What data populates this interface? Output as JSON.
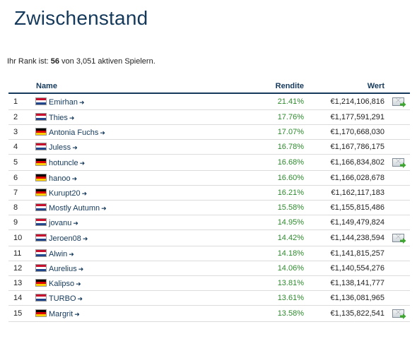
{
  "page": {
    "title": "Zwischenstand",
    "rank_prefix": "Ihr Rank ist: ",
    "rank_value": "56",
    "rank_suffix": " von 3,051 aktiven Spielern."
  },
  "table": {
    "headers": {
      "name": "Name",
      "return": "Rendite",
      "value": "Wert"
    },
    "rows": [
      {
        "rank": "1",
        "flag": "nl",
        "name": "Emirhan",
        "return": "21.41%",
        "value": "€1,214,106,816",
        "message": true
      },
      {
        "rank": "2",
        "flag": "nl",
        "name": "Thies",
        "return": "17.76%",
        "value": "€1,177,591,291",
        "message": false
      },
      {
        "rank": "3",
        "flag": "de",
        "name": "Antonia Fuchs",
        "return": "17.07%",
        "value": "€1,170,668,030",
        "message": false
      },
      {
        "rank": "4",
        "flag": "nl",
        "name": "Juless",
        "return": "16.78%",
        "value": "€1,167,786,175",
        "message": false
      },
      {
        "rank": "5",
        "flag": "de",
        "name": "hotuncle",
        "return": "16.68%",
        "value": "€1,166,834,802",
        "message": true
      },
      {
        "rank": "6",
        "flag": "de",
        "name": "hanoo",
        "return": "16.60%",
        "value": "€1,166,028,678",
        "message": false
      },
      {
        "rank": "7",
        "flag": "de",
        "name": "Kurupt20",
        "return": "16.21%",
        "value": "€1,162,117,183",
        "message": false
      },
      {
        "rank": "8",
        "flag": "nl",
        "name": "Mostly Autumn",
        "return": "15.58%",
        "value": "€1,155,815,486",
        "message": false
      },
      {
        "rank": "9",
        "flag": "nl",
        "name": "jovanu",
        "return": "14.95%",
        "value": "€1,149,479,824",
        "message": false
      },
      {
        "rank": "10",
        "flag": "nl",
        "name": "Jeroen08",
        "return": "14.42%",
        "value": "€1,144,238,594",
        "message": true
      },
      {
        "rank": "11",
        "flag": "nl",
        "name": "Alwin",
        "return": "14.18%",
        "value": "€1,141,815,257",
        "message": false
      },
      {
        "rank": "12",
        "flag": "nl",
        "name": "Aurelius",
        "return": "14.06%",
        "value": "€1,140,554,276",
        "message": false
      },
      {
        "rank": "13",
        "flag": "de",
        "name": "Kalipso",
        "return": "13.81%",
        "value": "€1,138,141,777",
        "message": false
      },
      {
        "rank": "14",
        "flag": "nl",
        "name": "TURBO",
        "return": "13.61%",
        "value": "€1,136,081,965",
        "message": false
      },
      {
        "rank": "15",
        "flag": "de",
        "name": "Margrit",
        "return": "13.58%",
        "value": "€1,135,822,541",
        "message": true
      }
    ]
  },
  "icons": {
    "profile_arrow": "arrow-right-icon",
    "message": "message-envelope-icon",
    "flag_nl": "netherlands-flag-icon",
    "flag_de": "germany-flag-icon"
  },
  "colors": {
    "title": "#14395b",
    "return_positive": "#2e8b2e",
    "link": "#14395b"
  }
}
